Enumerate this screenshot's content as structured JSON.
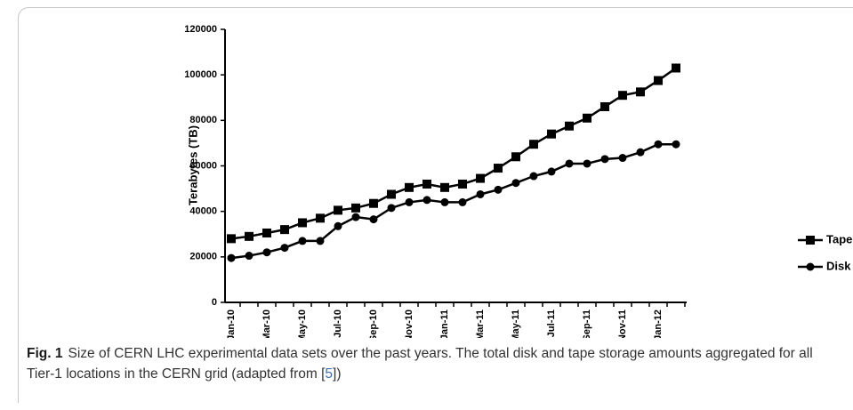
{
  "chart_data": {
    "type": "line",
    "y_label": "Terabytes (TB)",
    "categories": [
      "Jan-10",
      null,
      "Mar-10",
      null,
      "May-10",
      null,
      "Jul-10",
      null,
      "Sep-10",
      null,
      "Nov-10",
      null,
      "Jan-11",
      null,
      "Mar-11",
      null,
      "May-11",
      null,
      "Jul-11",
      null,
      "Sep-11",
      null,
      "Nov-11",
      null,
      "Jan-12",
      null
    ],
    "series": [
      {
        "name": "Tape",
        "color": "#000000",
        "marker": "square",
        "values": [
          28000,
          29000,
          30500,
          32000,
          35000,
          37000,
          40500,
          41500,
          43500,
          47500,
          50500,
          52000,
          50500,
          52000,
          54500,
          59000,
          64000,
          69500,
          74000,
          77500,
          81000,
          86000,
          91000,
          92500,
          97500,
          103000
        ]
      },
      {
        "name": "Disk",
        "color": "#000000",
        "marker": "circle",
        "values": [
          19500,
          20500,
          22000,
          24000,
          27000,
          27000,
          33500,
          37500,
          36500,
          41500,
          44000,
          45000,
          44000,
          44000,
          47500,
          49500,
          52500,
          55500,
          57500,
          61000,
          61000,
          63000,
          63500,
          66000,
          69500,
          69500
        ]
      }
    ],
    "ylim": [
      0,
      120000
    ],
    "yticks": [
      0,
      20000,
      40000,
      60000,
      80000,
      100000,
      120000
    ],
    "legend": "lower right"
  },
  "caption": {
    "label": "Fig. 1",
    "text": "Size of CERN LHC experimental data sets over the past years. The total disk and tape storage amounts aggregated for all Tier-1 locations in the CERN grid (adapted from [",
    "ref": "5",
    "text_end": "])"
  }
}
